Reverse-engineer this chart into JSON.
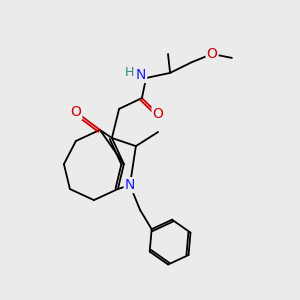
{
  "bg_color": "#ebebeb",
  "atom_colors": {
    "C": "#000000",
    "N": "#1a1aff",
    "O": "#cc0000",
    "H": "#2e8b8b"
  },
  "figsize": [
    3.0,
    3.0
  ],
  "dpi": 100
}
